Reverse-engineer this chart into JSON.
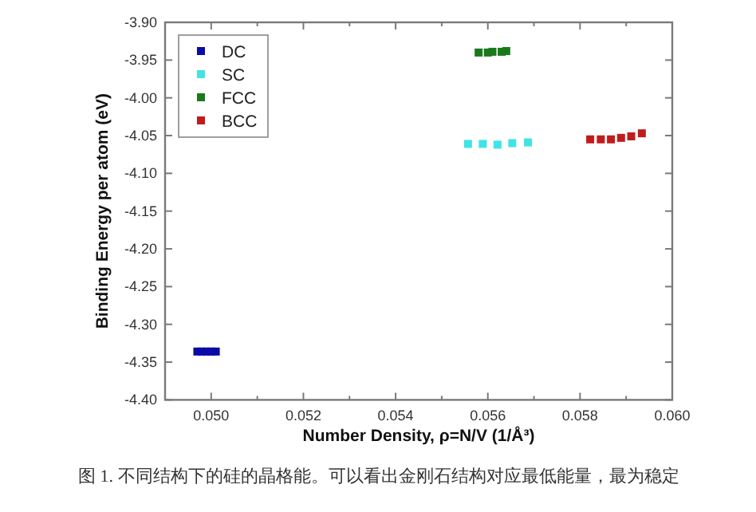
{
  "chart_data": {
    "type": "scatter",
    "xlabel": "Number Density, ρ=N/V (1/Å³)",
    "ylabel": "Binding Energy per atom (eV)",
    "annotations": [
      "图 1. 不同结构下的硅的晶格能。可以看出金刚石结构对应最低能量，最为稳定"
    ],
    "series": [
      {
        "name": "DC",
        "color": "#0a0aa8",
        "x": [
          0.0497,
          0.0498,
          0.0499,
          0.05,
          0.0501
        ],
        "values": [
          -4.336,
          -4.336,
          -4.336,
          -4.336,
          -4.336
        ]
      },
      {
        "name": "SC",
        "color": "#40e4e4",
        "x": [
          0.05557,
          0.05589,
          0.05621,
          0.05653,
          0.05687
        ],
        "values": [
          -4.061,
          -4.061,
          -4.062,
          -4.06,
          -4.059
        ]
      },
      {
        "name": "FCC",
        "color": "#1a7a1a",
        "x": [
          0.0558,
          0.056,
          0.0561,
          0.0563,
          0.0564
        ],
        "values": [
          -3.94,
          -3.94,
          -3.939,
          -3.939,
          -3.938
        ]
      },
      {
        "name": "BCC",
        "color": "#c01c1c",
        "x": [
          0.05822,
          0.05845,
          0.05867,
          0.05889,
          0.05911,
          0.05934
        ],
        "values": [
          -4.055,
          -4.055,
          -4.055,
          -4.053,
          -4.051,
          -4.047
        ]
      }
    ],
    "marker": "square",
    "legend": "top left",
    "grid": false,
    "xlim": [
      0.049,
      0.06
    ],
    "ylim": [
      -4.4,
      -3.9
    ],
    "xticks": [
      {
        "value": 0.049,
        "label": null
      },
      {
        "value": 0.05,
        "label": "0.050"
      },
      {
        "value": 0.051,
        "label": null
      },
      {
        "value": 0.052,
        "label": "0.052"
      },
      {
        "value": 0.053,
        "label": null
      },
      {
        "value": 0.054,
        "label": "0.054"
      },
      {
        "value": 0.055,
        "label": null
      },
      {
        "value": 0.056,
        "label": "0.056"
      },
      {
        "value": 0.057,
        "label": null
      },
      {
        "value": 0.058,
        "label": "0.058"
      },
      {
        "value": 0.059,
        "label": null
      },
      {
        "value": 0.06,
        "label": "0.060"
      }
    ],
    "yticks": [
      {
        "value": -4.4,
        "label": "-4.40"
      },
      {
        "value": -4.35,
        "label": "-4.35"
      },
      {
        "value": -4.3,
        "label": "-4.30"
      },
      {
        "value": -4.25,
        "label": "-4.25"
      },
      {
        "value": -4.2,
        "label": "-4.20"
      },
      {
        "value": -4.15,
        "label": "-4.15"
      },
      {
        "value": -4.1,
        "label": "-4.10"
      },
      {
        "value": -4.05,
        "label": "-4.05"
      },
      {
        "value": -4.0,
        "label": "-4.00"
      },
      {
        "value": -3.95,
        "label": "-3.95"
      },
      {
        "value": -3.9,
        "label": "-3.90"
      }
    ]
  }
}
